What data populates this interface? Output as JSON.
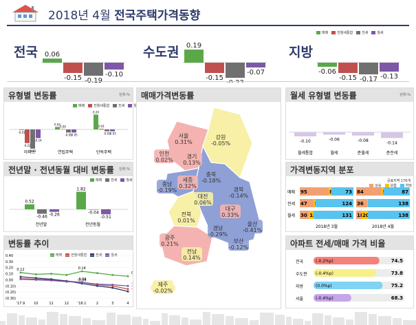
{
  "header": {
    "title_prefix": "2018년 4월",
    "title_main": "전국주택가격동향"
  },
  "colors": {
    "sale": "#5aa84a",
    "mixed": "#c0504d",
    "jeonse": "#707070",
    "monthly": "#7e57a6",
    "red": "#f4b3b0",
    "yellow": "#f7f0a6",
    "blue": "#8ea0d6",
    "navy": "#2d3a6b"
  },
  "legend": {
    "sale": "매매",
    "mixed": "전월세통합",
    "jeonse": "전세",
    "monthly": "월세"
  },
  "top_summary": {
    "regions": [
      {
        "name": "전국",
        "values": [
          0.06,
          -0.15,
          -0.19,
          -0.1
        ]
      },
      {
        "name": "수도권",
        "values": [
          0.19,
          -0.15,
          -0.22,
          -0.07
        ]
      },
      {
        "name": "지방",
        "values": [
          -0.06,
          -0.15,
          -0.17,
          -0.13
        ]
      }
    ]
  },
  "panels": {
    "type": {
      "title": "유형별 변동률",
      "unit": "단위:%"
    },
    "yearly": {
      "title": "전년말 · 전년동월 대비 변동률",
      "unit": "단위:%"
    },
    "trend": {
      "title": "변동률 추이"
    },
    "map": {
      "title": "매매가격변동률"
    },
    "monthly_type": {
      "title": "월세 유형별 변동률",
      "unit": "단위:%"
    },
    "dist": {
      "title": "가격변동지역 분포",
      "unit": "공표지역 176개",
      "legend": [
        "상승",
        "보합",
        "하락"
      ]
    },
    "ratio": {
      "title": "아파트 전세/매매 가격 비율"
    }
  },
  "chart_data": [
    {
      "type": "bar",
      "title": "유형별 변동률",
      "categories": [
        "아파트",
        "연립주택",
        "단독주택"
      ],
      "series": [
        {
          "name": "매매",
          "values": [
            -0.01,
            0.04,
            0.24
          ]
        },
        {
          "name": "전월세통합",
          "values": [
            -0.22,
            0.0,
            0.01
          ]
        },
        {
          "name": "전세",
          "values": [
            -0.31,
            -0.05,
            -0.03
          ]
        },
        {
          "name": "월세",
          "values": [
            -0.14,
            -0.05,
            -0.03
          ]
        }
      ],
      "labels": [
        [
          "-0.01",
          "-0.22",
          "-0.31",
          "-0.14"
        ],
        [
          "0.04",
          "0.00",
          "-0.05",
          "-0.05"
        ],
        [
          "0.24",
          "0.01",
          "-0.03",
          "-0.03"
        ]
      ]
    },
    {
      "type": "bar",
      "title": "전년말 · 전년동월 대비 변동률",
      "categories": [
        "전년말",
        "전년동월"
      ],
      "series": [
        {
          "name": "매매",
          "values": [
            0.52,
            1.82
          ]
        },
        {
          "name": "전세",
          "values": [
            -0.46,
            -0.04
          ]
        },
        {
          "name": "월세",
          "values": [
            -0.26,
            -0.51
          ]
        }
      ]
    },
    {
      "type": "line",
      "title": "변동률 추이",
      "x": [
        "'17.9",
        "10",
        "11",
        "12",
        "'18.1",
        "2",
        "3",
        "4"
      ],
      "ylim": [
        -0.3,
        0.4
      ],
      "yticks": [
        "0.40",
        "0.30",
        "0.20",
        "0.10",
        "0.00",
        "(0.10)",
        "(0.20)",
        "(0.30)"
      ],
      "series": [
        {
          "name": "매매",
          "values": [
            0.12,
            0.09,
            0.1,
            0.08,
            0.14,
            0.11,
            0.08,
            0.06
          ]
        },
        {
          "name": "전월세통합",
          "values": [
            0.02,
            0.01,
            0.0,
            -0.02,
            -0.04,
            -0.08,
            -0.1,
            -0.15
          ]
        },
        {
          "name": "전세",
          "values": [
            0.05,
            0.03,
            0.01,
            -0.02,
            -0.06,
            -0.1,
            -0.13,
            -0.19
          ]
        },
        {
          "name": "월세",
          "values": [
            0.01,
            0.0,
            -0.01,
            -0.03,
            -0.04,
            -0.07,
            -0.08,
            -0.1
          ]
        }
      ],
      "labels": [
        {
          "text": "0.12",
          "i": 0,
          "s": 0
        },
        {
          "text": "0.14",
          "i": 4,
          "s": 0
        },
        {
          "text": "0.06",
          "i": 7,
          "s": 0
        },
        {
          "text": "-0.06",
          "i": 4,
          "s": 2
        },
        {
          "text": "-0.10",
          "i": 7,
          "s": 3
        },
        {
          "text": "-0.15",
          "i": 7,
          "s": 1
        },
        {
          "text": "-0.19",
          "i": 7,
          "s": 2
        },
        {
          "text": "-0.04",
          "i": 4,
          "s": 1
        }
      ]
    },
    {
      "type": "bar",
      "title": "월세 유형별 변동률",
      "categories": [
        "월세통합",
        "월세",
        "준월세",
        "준전세"
      ],
      "values": [
        -0.1,
        -0.06,
        -0.08,
        -0.14
      ],
      "labels": [
        "-0.10",
        "-0.06",
        "-0.08",
        "-0.14"
      ]
    },
    {
      "type": "bar",
      "title": "가격변동지역 분포",
      "rows": [
        {
          "name": "매매",
          "months": [
            {
              "label": "2018년 3월",
              "up": 95,
              "flat": 8,
              "down": 73
            },
            {
              "label": "2018년 4월",
              "up": 84,
              "flat": 5,
              "down": 87
            }
          ]
        },
        {
          "name": "전세",
          "months": [
            {
              "label": "2018년 3월",
              "up": 47,
              "flat": 5,
              "down": 124
            },
            {
              "label": "2018년 4월",
              "up": 36,
              "flat": 2,
              "down": 138
            }
          ]
        },
        {
          "name": "월세",
          "months": [
            {
              "label": "2018년 3월",
              "up": 30,
              "flat": 15,
              "down": 131
            },
            {
              "label": "2018년 4월",
              "up": 18,
              "flat": 20,
              "down": 138
            }
          ]
        }
      ],
      "x": [
        "2018년 3월",
        "2018년 4월"
      ]
    },
    {
      "type": "bar",
      "title": "아파트 전세/매매 가격 비율",
      "rows": [
        {
          "name": "전국",
          "change": "(-0.2%p)",
          "value": 74.5
        },
        {
          "name": "수도권",
          "change": "(-0.4%p)",
          "value": 73.8
        },
        {
          "name": "지방",
          "change": "(0.0%p)",
          "value": 75.2
        },
        {
          "name": "서울",
          "change": "(-0.4%p)",
          "value": 68.3
        }
      ]
    }
  ],
  "map": {
    "regions": [
      {
        "name": "서울",
        "value": "0.31%"
      },
      {
        "name": "인천",
        "value": "0.02%"
      },
      {
        "name": "경기",
        "value": "0.13%"
      },
      {
        "name": "강원",
        "value": "-0.05%"
      },
      {
        "name": "충북",
        "value": "-0.18%"
      },
      {
        "name": "세종",
        "value": "0.32%"
      },
      {
        "name": "충남",
        "value": "-0.19%"
      },
      {
        "name": "대전",
        "value": "0.06%"
      },
      {
        "name": "경북",
        "value": "-0.14%"
      },
      {
        "name": "전북",
        "value": "0.01%"
      },
      {
        "name": "대구",
        "value": "0.33%"
      },
      {
        "name": "울산",
        "value": "-0.41%"
      },
      {
        "name": "경남",
        "value": "-0.29%"
      },
      {
        "name": "부산",
        "value": "-0.12%"
      },
      {
        "name": "광주",
        "value": "0.21%"
      },
      {
        "name": "전남",
        "value": "0.14%"
      },
      {
        "name": "제주",
        "value": "-0.02%"
      }
    ]
  }
}
